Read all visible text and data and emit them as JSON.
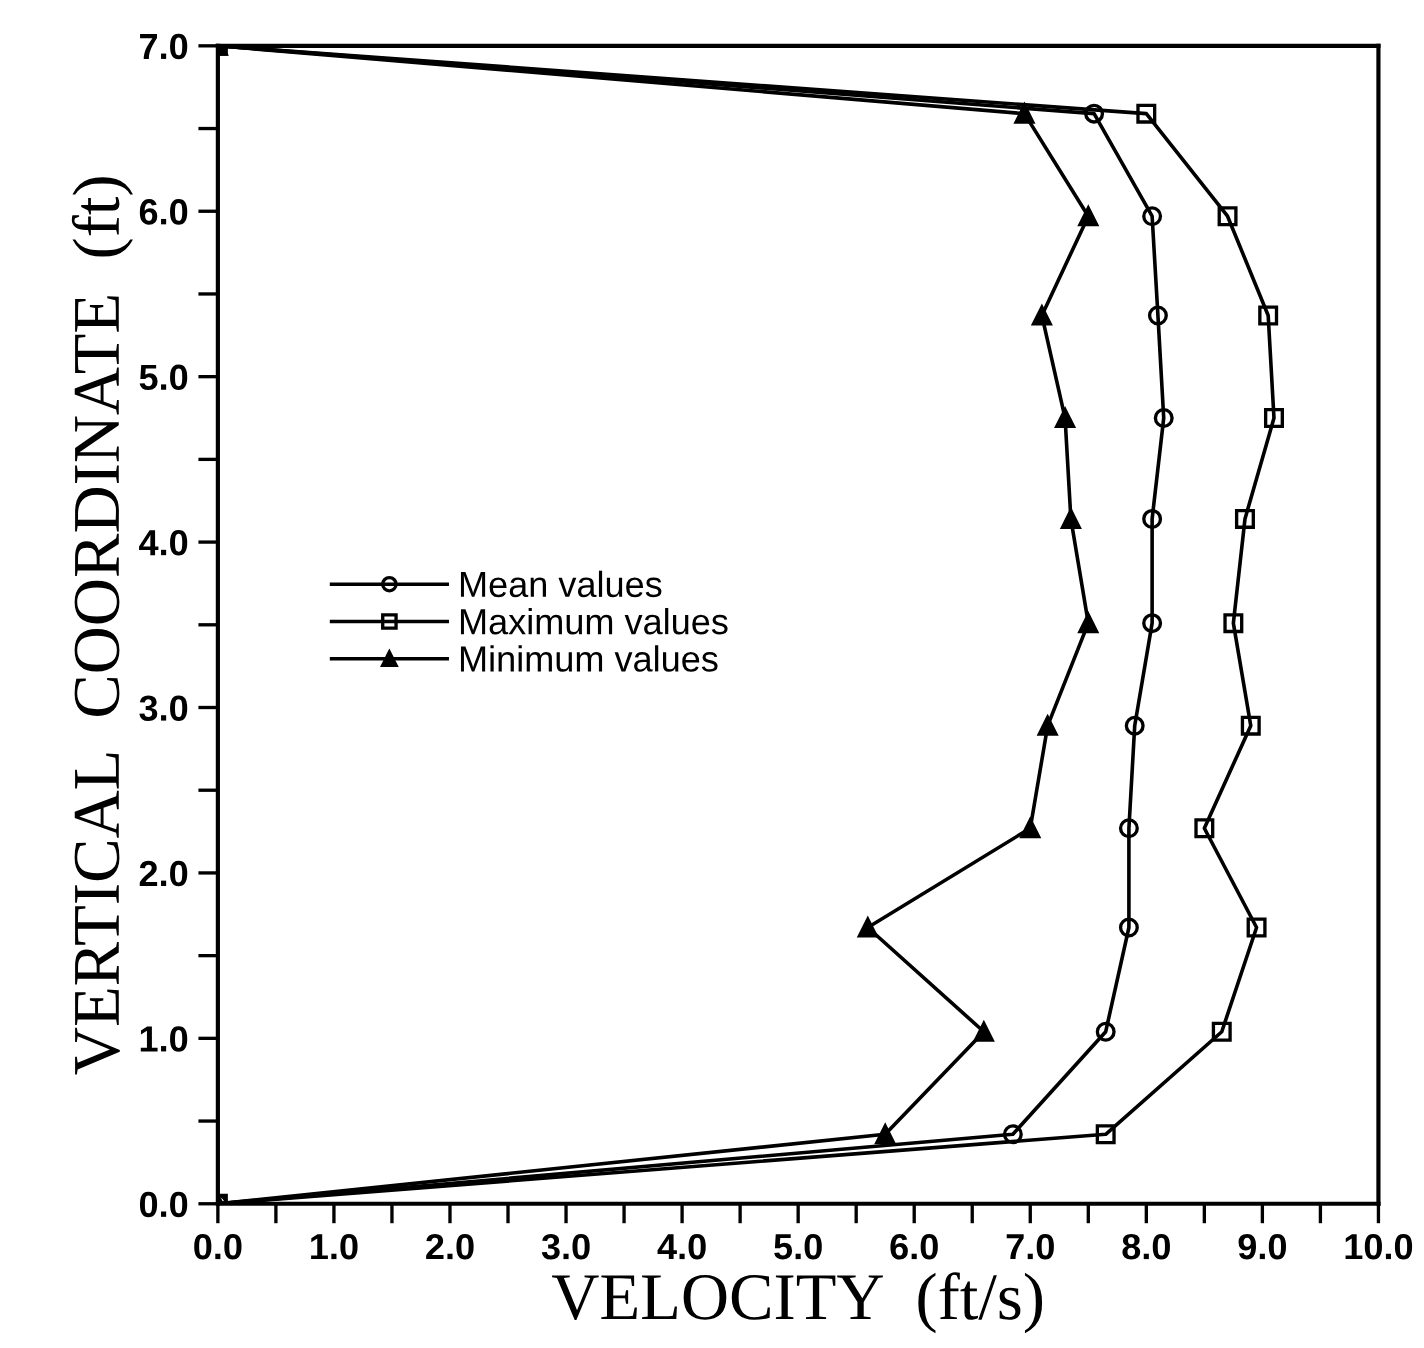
{
  "chart_data": {
    "type": "line",
    "xlabel": "VELOCITY  (ft/s)",
    "ylabel": "VERTICAL  COORDINATE  (ft)",
    "series": [
      {
        "name": "Mean values",
        "color": "#000000",
        "marker": "circle",
        "x": [
          0,
          6.85,
          7.65,
          7.85,
          7.85,
          7.9,
          8.05,
          8.05,
          8.15,
          8.1,
          8.05,
          7.55,
          0
        ],
        "values": [
          0,
          0.42,
          1.04,
          1.67,
          2.27,
          2.89,
          3.51,
          4.14,
          4.75,
          5.37,
          5.97,
          6.59,
          7.0
        ]
      },
      {
        "name": "Maximum values",
        "color": "#000000",
        "marker": "square",
        "x": [
          0,
          7.65,
          8.65,
          8.95,
          8.5,
          8.9,
          8.75,
          8.85,
          9.1,
          9.05,
          8.7,
          8.0,
          0
        ],
        "values": [
          0,
          0.42,
          1.04,
          1.67,
          2.27,
          2.89,
          3.51,
          4.14,
          4.75,
          5.37,
          5.97,
          6.59,
          7.0
        ]
      },
      {
        "name": "Minimum values",
        "color": "#000000",
        "marker": "triangle",
        "x": [
          0,
          5.75,
          6.6,
          5.6,
          7.0,
          7.15,
          7.5,
          7.35,
          7.3,
          7.1,
          7.5,
          6.95,
          0
        ],
        "values": [
          0,
          0.42,
          1.04,
          1.67,
          2.27,
          2.89,
          3.51,
          4.14,
          4.75,
          5.37,
          5.97,
          6.59,
          7.0
        ]
      }
    ],
    "xlim": [
      0,
      10
    ],
    "ylim": [
      0,
      7
    ],
    "xticks": [
      {
        "value": 0,
        "label": "0.0"
      },
      {
        "value": 0.5,
        "label": null
      },
      {
        "value": 1,
        "label": "1.0"
      },
      {
        "value": 1.5,
        "label": null
      },
      {
        "value": 2,
        "label": "2.0"
      },
      {
        "value": 2.5,
        "label": null
      },
      {
        "value": 3,
        "label": "3.0"
      },
      {
        "value": 3.5,
        "label": null
      },
      {
        "value": 4,
        "label": "4.0"
      },
      {
        "value": 4.5,
        "label": null
      },
      {
        "value": 5,
        "label": "5.0"
      },
      {
        "value": 5.5,
        "label": null
      },
      {
        "value": 6,
        "label": "6.0"
      },
      {
        "value": 6.5,
        "label": null
      },
      {
        "value": 7,
        "label": "7.0"
      },
      {
        "value": 7.5,
        "label": null
      },
      {
        "value": 8,
        "label": "8.0"
      },
      {
        "value": 8.5,
        "label": null
      },
      {
        "value": 9,
        "label": "9.0"
      },
      {
        "value": 9.5,
        "label": null
      },
      {
        "value": 10,
        "label": "10.0"
      }
    ],
    "yticks": [
      {
        "value": 0,
        "label": "0.0"
      },
      {
        "value": 0.5,
        "label": null
      },
      {
        "value": 1,
        "label": "1.0"
      },
      {
        "value": 1.5,
        "label": null
      },
      {
        "value": 2,
        "label": "2.0"
      },
      {
        "value": 2.5,
        "label": null
      },
      {
        "value": 3,
        "label": "3.0"
      },
      {
        "value": 3.5,
        "label": null
      },
      {
        "value": 4,
        "label": "4.0"
      },
      {
        "value": 4.5,
        "label": null
      },
      {
        "value": 5,
        "label": "5.0"
      },
      {
        "value": 5.5,
        "label": null
      },
      {
        "value": 6,
        "label": "6.0"
      },
      {
        "value": 6.5,
        "label": null
      },
      {
        "value": 7,
        "label": "7.0"
      }
    ],
    "grid": false,
    "legend": "left",
    "line_style": "solid"
  }
}
